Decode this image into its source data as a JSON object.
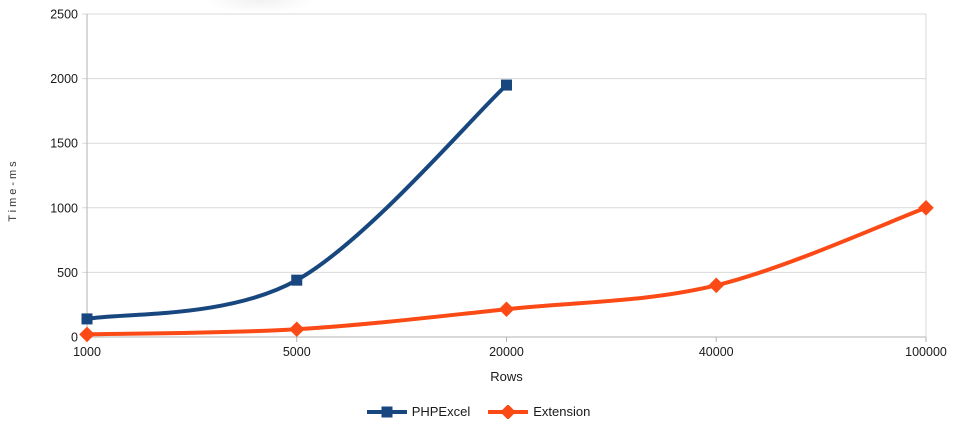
{
  "chart_data": {
    "type": "line",
    "xlabel": "Rows",
    "ylabel": "Time-ms",
    "categories": [
      "1000",
      "5000",
      "20000",
      "40000",
      "100000"
    ],
    "y_ticks": [
      0,
      500,
      1000,
      1500,
      2000,
      2500
    ],
    "ylim": [
      0,
      2500
    ],
    "grid": "horizontal",
    "legend_position": "bottom",
    "line_smoothing": true,
    "series": [
      {
        "name": "PHPExcel",
        "color": "#17477e",
        "marker": "square",
        "values": [
          140,
          440,
          1950,
          null,
          null
        ]
      },
      {
        "name": "Extension",
        "color": "#fb4a16",
        "marker": "diamond",
        "values": [
          20,
          60,
          215,
          400,
          1000
        ]
      }
    ]
  },
  "colors": {
    "background": "#ffffff",
    "gridline": "#d9d9d9",
    "axis": "#b3b3b3",
    "text": "#1a1a1a"
  }
}
